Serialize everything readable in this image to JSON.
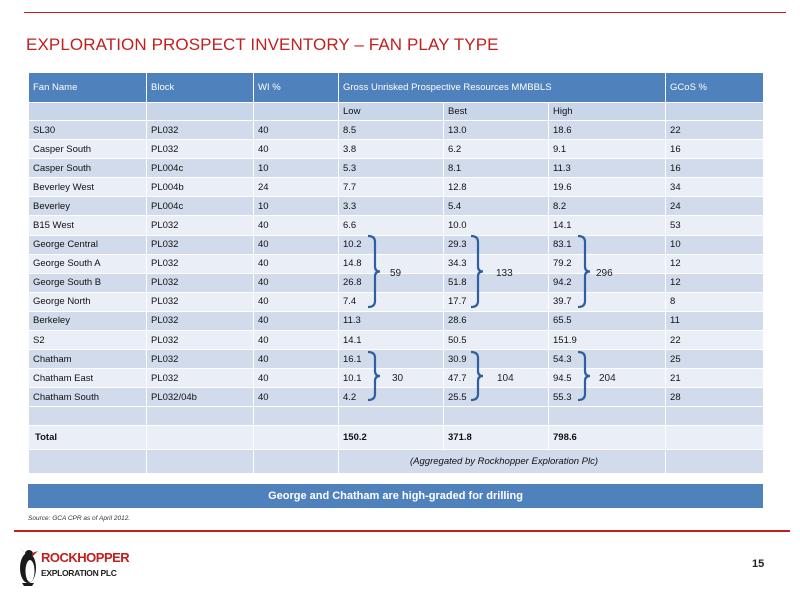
{
  "title": "EXPLORATION PROSPECT INVENTORY – FAN PLAY TYPE",
  "table": {
    "headers": {
      "name": "Fan Name",
      "block": "Block",
      "wi": "WI %",
      "resources": "Gross Unrisked Prospective Resources MMBBLS",
      "gcos": "GCoS %"
    },
    "subheaders": {
      "low": "Low",
      "best": "Best",
      "high": "High"
    },
    "rows": [
      {
        "name": "SL30",
        "block": "PL032",
        "wi": "40",
        "low": "8.5",
        "best": "13.0",
        "high": "18.6",
        "gcos": "22"
      },
      {
        "name": "Casper South",
        "block": "PL032",
        "wi": "40",
        "low": "3.8",
        "best": "6.2",
        "high": "9.1",
        "gcos": "16"
      },
      {
        "name": "Casper South",
        "block": "PL004c",
        "wi": "10",
        "low": "5.3",
        "best": "8.1",
        "high": "11.3",
        "gcos": "16"
      },
      {
        "name": "Beverley  West",
        "block": "PL004b",
        "wi": "24",
        "low": "7.7",
        "best": "12.8",
        "high": "19.6",
        "gcos": "34"
      },
      {
        "name": "Beverley",
        "block": "PL004c",
        "wi": "10",
        "low": "3.3",
        "best": "5.4",
        "high": "8.2",
        "gcos": "24"
      },
      {
        "name": "B15 West",
        "block": "PL032",
        "wi": "40",
        "low": "6.6",
        "best": "10.0",
        "high": "14.1",
        "gcos": "53"
      },
      {
        "name": "George Central",
        "block": "PL032",
        "wi": "40",
        "low": "10.2",
        "best": "29.3",
        "high": "83.1",
        "gcos": "10"
      },
      {
        "name": "George South A",
        "block": "PL032",
        "wi": "40",
        "low": "14.8",
        "best": "34.3",
        "high": "79.2",
        "gcos": "12"
      },
      {
        "name": "George South B",
        "block": "PL032",
        "wi": "40",
        "low": "26.8",
        "best": "51.8",
        "high": "94.2",
        "gcos": "12"
      },
      {
        "name": "George North",
        "block": "PL032",
        "wi": "40",
        "low": "7.4",
        "best": "17.7",
        "high": "39.7",
        "gcos": "8"
      },
      {
        "name": "Berkeley",
        "block": "PL032",
        "wi": "40",
        "low": "11.3",
        "best": "28.6",
        "high": "65.5",
        "gcos": "11"
      },
      {
        "name": "S2",
        "block": "PL032",
        "wi": "40",
        "low": "14.1",
        "best": "50.5",
        "high": "151.9",
        "gcos": "22"
      },
      {
        "name": "Chatham",
        "block": "PL032",
        "wi": "40",
        "low": "16.1",
        "best": "30.9",
        "high": "54.3",
        "gcos": "25"
      },
      {
        "name": "Chatham East",
        "block": "PL032",
        "wi": "40",
        "low": "10.1",
        "best": "47.7",
        "high": "94.5",
        "gcos": "21"
      },
      {
        "name": "Chatham South",
        "block": "PL032/04b",
        "wi": "40",
        "low": "4.2",
        "best": "25.5",
        "high": "55.3",
        "gcos": "28"
      }
    ],
    "total": {
      "label": "Total",
      "low": "150.2",
      "best": "371.8",
      "high": "798.6"
    },
    "aggregation_note": "(Aggregated by Rockhopper Exploration Plc)"
  },
  "groups": {
    "george": {
      "low_sum": "59",
      "best_sum": "133",
      "high_sum": "296"
    },
    "chatham": {
      "low_sum": "30",
      "best_sum": "104",
      "high_sum": "204"
    }
  },
  "banner": "George and Chatham are high-graded for drilling",
  "source": "Source: GCA CPR as of April 2012.",
  "page_number": "15",
  "logo": {
    "line1": "ROCKHOPPER",
    "line2": "EXPLORATION PLC"
  },
  "colors": {
    "accent_red": "#c0201e",
    "header_blue": "#4f81bd",
    "row_dark": "#d1dbec",
    "row_light": "#e9eef7",
    "bracket_blue": "#2f5f9e"
  }
}
